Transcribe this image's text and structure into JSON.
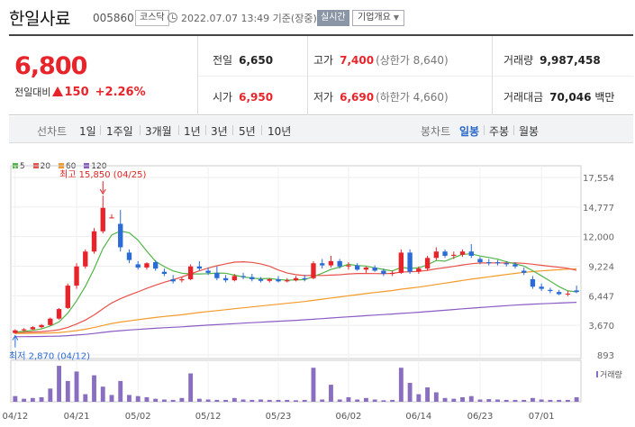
{
  "header": {
    "stock_name": "한일사료",
    "stock_code": "005860",
    "market": "코스닥",
    "timestamp": "2022.07.07 13:49 기준(장중)",
    "realtime_label": "실시간",
    "company_info_label": "기업개요",
    "icons": {
      "clock": "clock-icon",
      "company_dropdown": "chevron-down-icon"
    }
  },
  "summary": {
    "current_price": "6,800",
    "change_label": "전일대비",
    "change_amount": "150",
    "change_percent": "+2.26%",
    "prev_close_label": "전일",
    "prev_close": "6,650",
    "high_label": "고가",
    "high": "7,400",
    "upper_limit": "(상한가 8,640)",
    "volume_label": "거래량",
    "volume": "9,987,458",
    "open_label": "시가",
    "open": "6,950",
    "low_label": "저가",
    "low": "6,690",
    "lower_limit": "(하한가 4,660)",
    "value_label": "거래대금",
    "value": "70,046",
    "value_unit": "백만",
    "colors": {
      "up": "#e8242b"
    }
  },
  "periods": {
    "line_label": "선차트",
    "line_items": [
      "1일",
      "1주일",
      "3개월",
      "1년",
      "3년",
      "5년",
      "10년"
    ],
    "candle_label": "봉차트",
    "candle_items": [
      "일봉",
      "주봉",
      "월봉"
    ],
    "active_candle": "일봉"
  },
  "chart_data": {
    "type": "candlestick",
    "ma_legend": [
      {
        "name": "5",
        "color": "#52b548"
      },
      {
        "name": "20",
        "color": "#e8524a"
      },
      {
        "name": "60",
        "color": "#f39a2b"
      },
      {
        "name": "120",
        "color": "#8a5cc4"
      }
    ],
    "y_ticks": [
      "17,554",
      "14,777",
      "12,000",
      "9,224",
      "6,447",
      "3,670",
      "893"
    ],
    "ylim": [
      893,
      17554
    ],
    "x_labels": [
      "04/12",
      "04/21",
      "05/02",
      "05/12",
      "05/23",
      "06/02",
      "06/14",
      "06/23",
      "07/01"
    ],
    "x_label_index": [
      0,
      7,
      14,
      22,
      30,
      38,
      46,
      53,
      60
    ],
    "high_annotation": "최고 15,850 (04/25)",
    "low_annotation": "최저 2,870 (04/12)",
    "volume_label": "거래량",
    "candles": [
      [
        2950,
        3300,
        2870,
        3200
      ],
      [
        3200,
        3400,
        3100,
        3300
      ],
      [
        3300,
        3600,
        3250,
        3500
      ],
      [
        3500,
        3800,
        3400,
        3700
      ],
      [
        3700,
        4400,
        3650,
        4300
      ],
      [
        4300,
        5300,
        4200,
        5200
      ],
      [
        5300,
        7600,
        5200,
        7400
      ],
      [
        7400,
        9500,
        7100,
        9200
      ],
      [
        9200,
        10800,
        9000,
        10600
      ],
      [
        10600,
        12800,
        10400,
        12500
      ],
      [
        12500,
        15850,
        12300,
        14700
      ],
      [
        13800,
        14100,
        13700,
        13800
      ],
      [
        13200,
        14500,
        10600,
        11000
      ],
      [
        10500,
        10800,
        9500,
        9800
      ],
      [
        9400,
        9700,
        8900,
        9100
      ],
      [
        9100,
        9600,
        8900,
        9500
      ],
      [
        9600,
        9800,
        8800,
        9000
      ],
      [
        8700,
        9000,
        8300,
        8500
      ],
      [
        8000,
        8400,
        7600,
        7800
      ],
      [
        7900,
        8200,
        7700,
        8000
      ],
      [
        8000,
        9400,
        7900,
        9200
      ],
      [
        9200,
        9700,
        8800,
        9000
      ],
      [
        8800,
        9100,
        8400,
        8600
      ],
      [
        8600,
        9200,
        7900,
        8100
      ],
      [
        8100,
        8400,
        7700,
        7900
      ],
      [
        7900,
        8500,
        7800,
        8300
      ],
      [
        8300,
        8600,
        8000,
        8200
      ],
      [
        8200,
        8500,
        7800,
        8000
      ],
      [
        8000,
        8200,
        7700,
        7850
      ],
      [
        7850,
        8100,
        7700,
        8000
      ],
      [
        8000,
        8300,
        7700,
        7800
      ],
      [
        7800,
        8100,
        7700,
        7900
      ],
      [
        7900,
        8300,
        7800,
        8100
      ],
      [
        8100,
        8400,
        7800,
        8000
      ],
      [
        8100,
        9700,
        8000,
        9500
      ],
      [
        9500,
        9900,
        9000,
        9300
      ],
      [
        9300,
        10200,
        9100,
        9700
      ],
      [
        9700,
        9900,
        9000,
        9200
      ],
      [
        9200,
        9600,
        8900,
        9300
      ],
      [
        9300,
        9500,
        8800,
        8900
      ],
      [
        8900,
        9200,
        8600,
        9100
      ],
      [
        9100,
        9300,
        8700,
        8800
      ],
      [
        8800,
        9000,
        8300,
        8500
      ],
      [
        8500,
        8800,
        8300,
        8600
      ],
      [
        8600,
        10800,
        8500,
        10500
      ],
      [
        10500,
        10800,
        8500,
        8700
      ],
      [
        8700,
        9200,
        8500,
        9000
      ],
      [
        9000,
        10200,
        8800,
        10000
      ],
      [
        10000,
        11000,
        9800,
        10600
      ],
      [
        10600,
        10800,
        10000,
        10200
      ],
      [
        10200,
        10600,
        9900,
        10300
      ],
      [
        10300,
        10800,
        10100,
        10600
      ],
      [
        10600,
        11300,
        10000,
        10200
      ],
      [
        9900,
        10100,
        9400,
        9600
      ],
      [
        9600,
        9900,
        9300,
        9500
      ],
      [
        9600,
        9800,
        9300,
        9500
      ],
      [
        9500,
        9700,
        9200,
        9400
      ],
      [
        9400,
        9600,
        9000,
        9200
      ],
      [
        8800,
        9100,
        8400,
        8600
      ],
      [
        8000,
        8300,
        7100,
        7300
      ],
      [
        7300,
        7600,
        6900,
        7100
      ],
      [
        7000,
        7200,
        6700,
        6900
      ],
      [
        6800,
        7000,
        6500,
        6600
      ],
      [
        6600,
        6900,
        6400,
        6650
      ],
      [
        6950,
        7400,
        6690,
        6800
      ]
    ],
    "volumes": [
      0.15,
      0.08,
      0.1,
      0.12,
      0.35,
      0.95,
      0.55,
      0.8,
      0.2,
      0.7,
      0.4,
      0.18,
      0.55,
      0.18,
      0.15,
      0.12,
      0.08,
      0.06,
      0.05,
      0.1,
      0.75,
      0.08,
      0.06,
      0.05,
      0.05,
      0.1,
      0.06,
      0.05,
      0.06,
      0.05,
      0.05,
      0.05,
      0.04,
      0.05,
      0.9,
      0.06,
      0.45,
      0.06,
      0.12,
      0.06,
      0.1,
      0.06,
      0.04,
      0.05,
      0.9,
      0.5,
      0.2,
      0.38,
      0.25,
      0.1,
      0.08,
      0.12,
      0.15,
      0.06,
      0.07,
      0.06,
      0.05,
      0.05,
      0.05,
      0.1,
      0.06,
      0.05,
      0.05,
      0.05,
      0.12
    ]
  }
}
